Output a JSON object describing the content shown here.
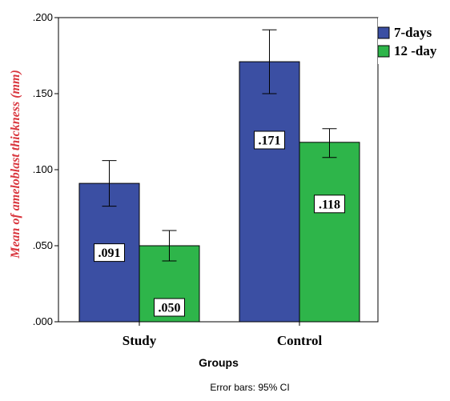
{
  "chart_data": {
    "type": "bar",
    "title": "",
    "xlabel": "Groups",
    "ylabel": "Mean of ameloblast thickness (mm)",
    "categories": [
      "Study",
      "Control"
    ],
    "series": [
      {
        "name": "7-days",
        "color": "#3b4fa3",
        "values": [
          0.091,
          0.171
        ],
        "labels": [
          ".091",
          ".171"
        ],
        "ci_low": [
          0.076,
          0.15
        ],
        "ci_high": [
          0.106,
          0.192
        ]
      },
      {
        "name": "12 -day",
        "color": "#2eb54a",
        "values": [
          0.05,
          0.118
        ],
        "labels": [
          ".050",
          ".118"
        ],
        "ci_low": [
          0.04,
          0.108
        ],
        "ci_high": [
          0.06,
          0.127
        ]
      }
    ],
    "ylim": [
      0,
      0.2
    ],
    "yticks": [
      ".000",
      ".050",
      ".100",
      ".150",
      ".200"
    ],
    "ytick_values": [
      0,
      0.05,
      0.1,
      0.15,
      0.2
    ],
    "grid": false,
    "legend_position": "top-right",
    "footnote": "Error bars: 95% CI",
    "ylabel_color": "#d9363e"
  }
}
